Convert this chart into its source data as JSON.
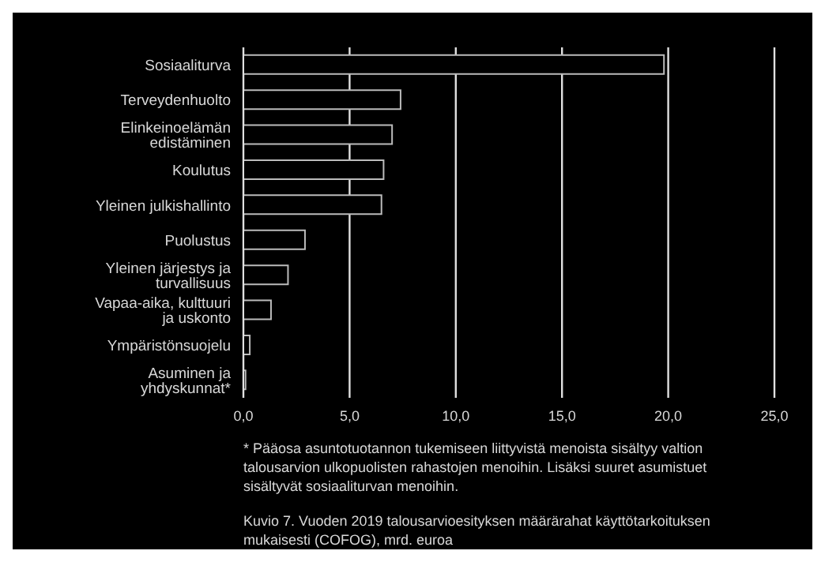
{
  "chart_data": {
    "type": "bar",
    "orientation": "horizontal",
    "categories": [
      "Sosiaaliturva",
      "Terveydenhuolto",
      "Elinkeinoelämän edistäminen",
      "Koulutus",
      "Yleinen julkishallinto",
      "Puolustus",
      "Yleinen järjestys ja turvallisuus",
      "Vapaa-aika, kulttuuri ja uskonto",
      "Ympäristönsuojelu",
      "Asuminen ja yhdyskunnat*"
    ],
    "values": [
      19.8,
      7.4,
      7.0,
      6.6,
      6.5,
      2.9,
      2.1,
      1.3,
      0.3,
      0.1
    ],
    "color": "#000000",
    "xlim": [
      0,
      25
    ],
    "xticks": [
      {
        "value": 0,
        "label": "0,0"
      },
      {
        "value": 5,
        "label": "5,0"
      },
      {
        "value": 10,
        "label": "10,0"
      },
      {
        "value": 15,
        "label": "15,0"
      },
      {
        "value": 20,
        "label": "20,0"
      },
      {
        "value": 25,
        "label": "25,0"
      }
    ],
    "grid": "x",
    "annotations": [
      "* Pääosa asuntotuotannon tukemiseen liittyvistä menoista sisältyy valtion talousarvion ulkopuolisten rahastojen menoihin. Lisäksi suuret asumistuet sisältyvät sosiaaliturvan menoihin.",
      "Kuvio 7. Vuoden 2019 talousarvioesityksen määrärahat käyttötarkoituksen mukaisesti (COFOG), mrd. euroa"
    ]
  }
}
